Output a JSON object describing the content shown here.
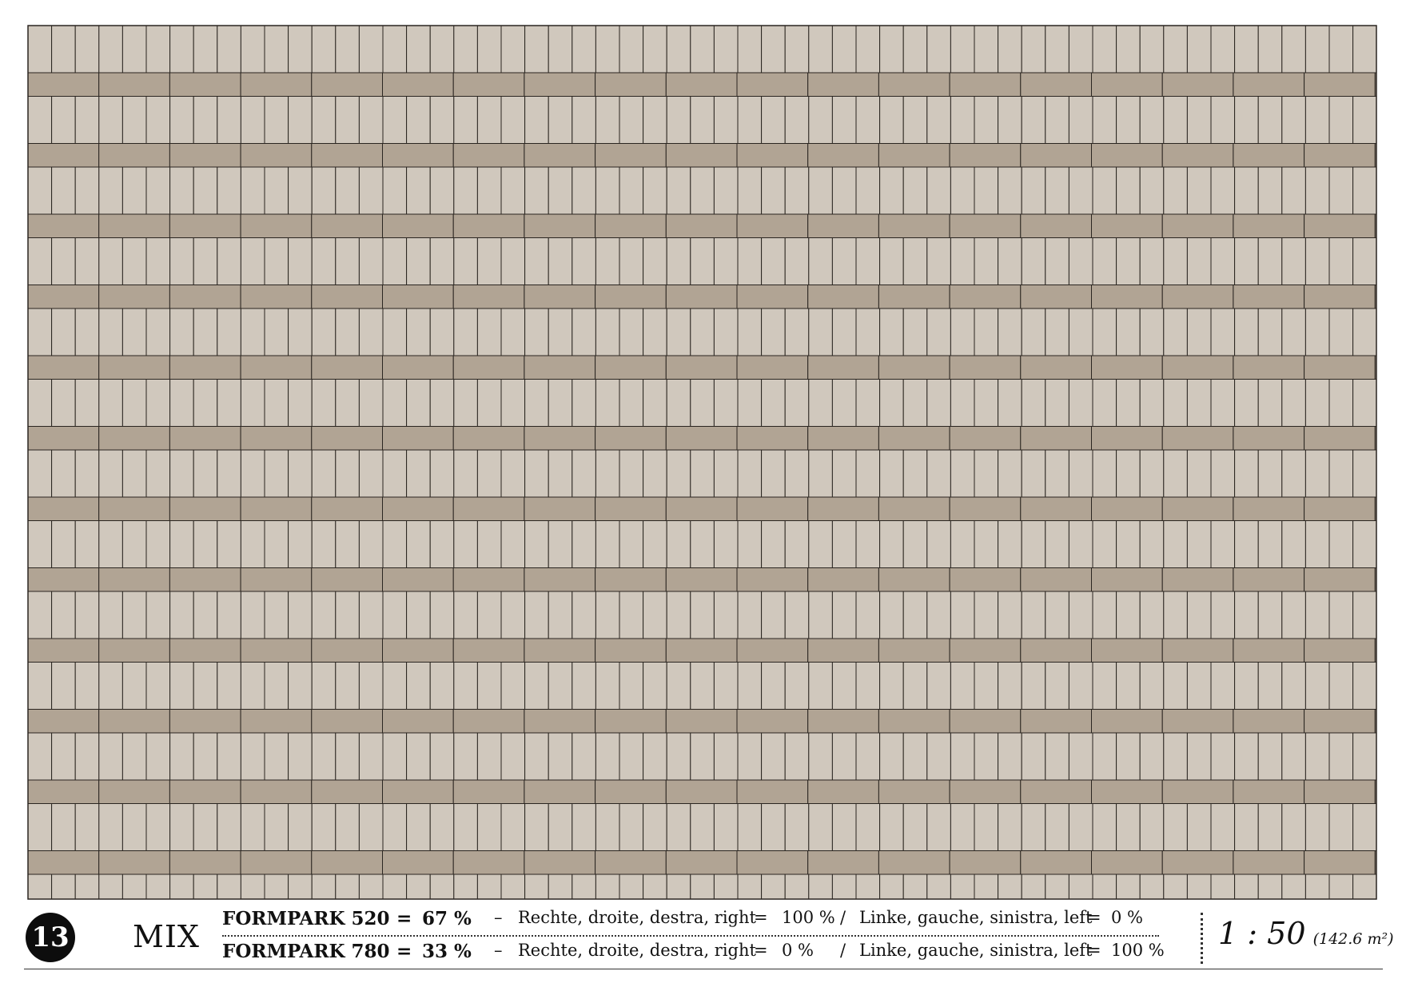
{
  "plan": {
    "colors": {
      "light_paver": "#d0c8bd",
      "dark_paver": "#b1a494",
      "joint": "#2a2520"
    }
  },
  "legend": {
    "number": "13",
    "pattern_name": "MIX",
    "rows": [
      {
        "product": "FORMPARK 520",
        "eq": "=",
        "share": "67 %",
        "dash": "–",
        "right_label": "Rechte, droite, destra, right",
        "right_eq": "=",
        "right_value": "100 %",
        "slash": "/",
        "left_label": "Linke, gauche, sinistra, left",
        "left_eq": "=",
        "left_value": "0 %"
      },
      {
        "product": "FORMPARK 780",
        "eq": "=",
        "share": "33 %",
        "dash": "–",
        "right_label": "Rechte, droite, destra, right",
        "right_eq": "=",
        "right_value": "0 %",
        "slash": "/",
        "left_label": "Linke, gauche, sinistra, left",
        "left_eq": "=",
        "left_value": "100 %"
      }
    ],
    "scale": "1 : 50",
    "area": "(142.6 m²)"
  }
}
